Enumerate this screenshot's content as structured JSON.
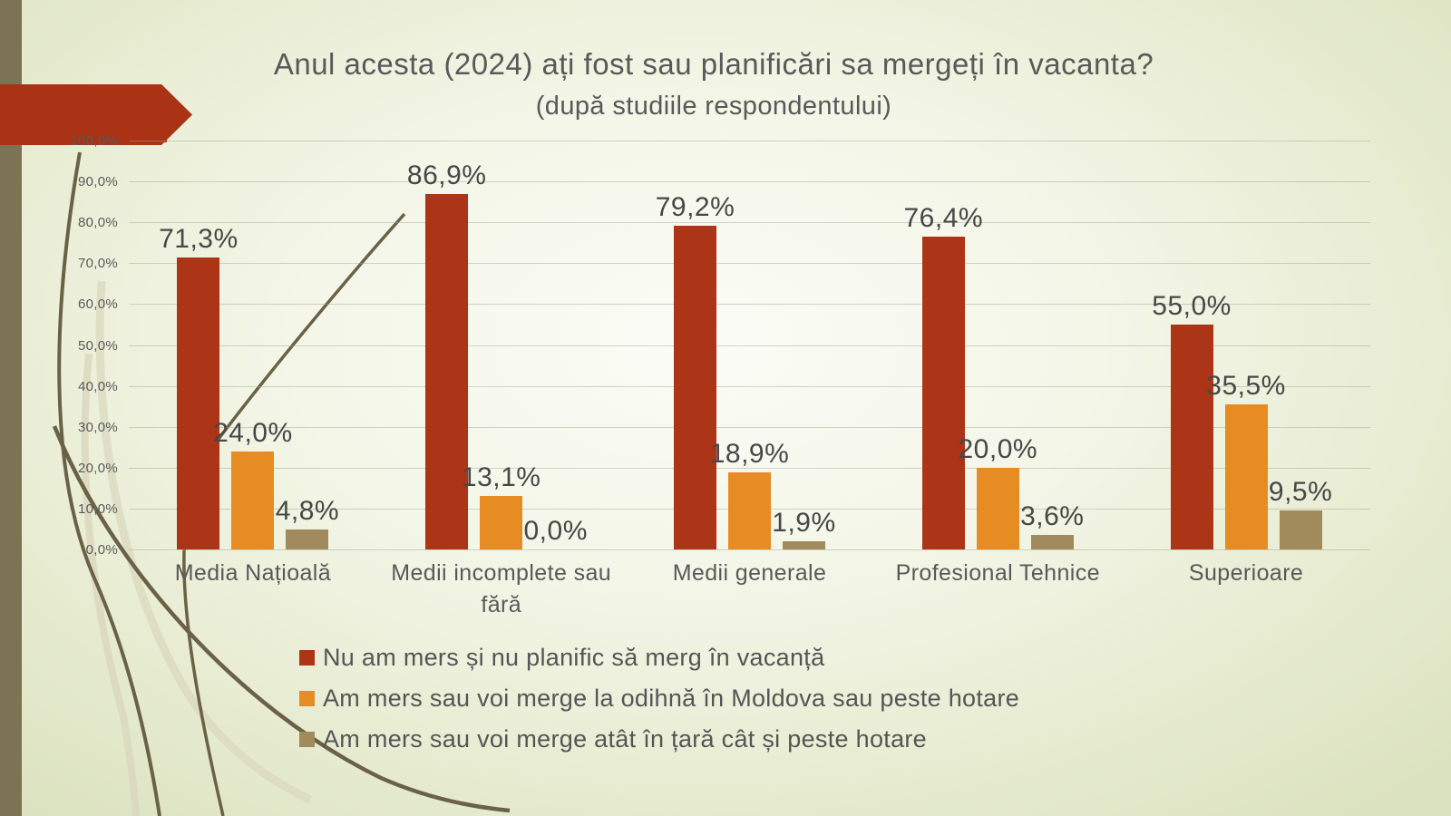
{
  "slide": {
    "title_line1": "Anul acesta (2024) ați fost sau planificări sa mergeți în vacanta?",
    "title_line2": "(după studiile respondentului)"
  },
  "chart_data": {
    "type": "bar",
    "title": "Anul acesta (2024) ați fost sau planificări sa mergeți în vacanta?",
    "subtitle": "(după studiile respondentului)",
    "categories": [
      "Media Națioală",
      "Medii incomplete sau fără",
      "Medii generale",
      "Profesional Tehnice",
      "Superioare"
    ],
    "series": [
      {
        "name": "Nu am mers și nu planific să merg în vacanță",
        "color": "#ac3417",
        "values": [
          71.3,
          86.9,
          79.2,
          76.4,
          55.0
        ],
        "labels": [
          "71,3%",
          "86,9%",
          "79,2%",
          "76,4%",
          "55,0%"
        ]
      },
      {
        "name": "Am mers sau voi merge la odihnă în Moldova sau peste hotare",
        "color": "#e78c23",
        "values": [
          24.0,
          13.1,
          18.9,
          20.0,
          35.5
        ],
        "labels": [
          "24,0%",
          "13,1%",
          "18,9%",
          "20,0%",
          "35,5%"
        ]
      },
      {
        "name": "Am mers sau voi merge atât în țară cât și peste hotare",
        "color": "#a18a5b",
        "values": [
          4.8,
          0.0,
          1.9,
          3.6,
          9.5
        ],
        "labels": [
          "4,8%",
          "0,0%",
          "1,9%",
          "3,6%",
          "9,5%"
        ]
      }
    ],
    "y_axis": {
      "min": 0,
      "max": 100,
      "step": 10,
      "tick_labels": [
        "100,0%",
        "90,0%",
        "80,0%",
        "70,0%",
        "60,0%",
        "50,0%",
        "40,0%",
        "30,0%",
        "20,0%",
        "10,0%",
        "0,0%"
      ]
    },
    "grid": "horizontal",
    "legend_position": "bottom-left"
  },
  "decorations": {
    "accent_red": "#a93314",
    "strip_olive": "#7b7354",
    "grass_dark": "#6a6146",
    "grass_light": "#d9d7bd",
    "gridline_color": "#a0a48c",
    "text_gray": "#595959"
  }
}
